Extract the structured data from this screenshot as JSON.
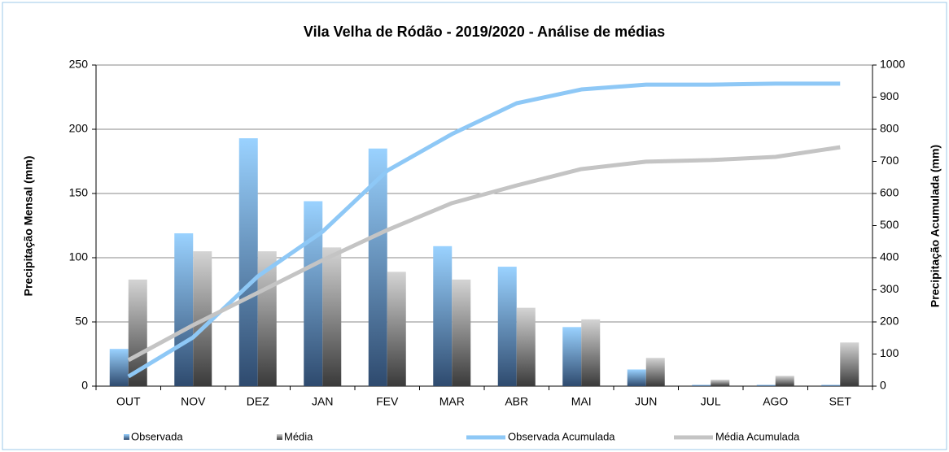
{
  "chart_data": {
    "type": "bar_line_combo",
    "title": "Vila Velha de Ródão - 2019/2020  - Análise de médias",
    "y_label": "Precipitação Mensal (mm)",
    "y2_label": "Precipitação Acumulada (mm)",
    "categories": [
      "OUT",
      "NOV",
      "DEZ",
      "JAN",
      "FEV",
      "MAR",
      "ABR",
      "MAI",
      "JUN",
      "JUL",
      "AGO",
      "SET"
    ],
    "series": [
      {
        "name": "Observada",
        "kind": "bar",
        "color": "#8cc8f8",
        "values": [
          29,
          119,
          193,
          144,
          185,
          109,
          93,
          46,
          13,
          1,
          1,
          1
        ]
      },
      {
        "name": "Média",
        "kind": "bar",
        "color": "#c8c8c8",
        "values": [
          83,
          105,
          105,
          108,
          89,
          83,
          61,
          52,
          22,
          5,
          8,
          34
        ]
      },
      {
        "name": "Observada Acumulada",
        "kind": "line",
        "axis": "y2",
        "color": "#8ec8f6",
        "values": [
          30,
          152,
          342,
          481,
          671,
          785,
          881,
          924,
          939,
          939,
          942,
          942
        ]
      },
      {
        "name": "Média Acumulada",
        "kind": "line",
        "axis": "y2",
        "color": "#c4c4c4",
        "values": [
          81,
          190,
          291,
          392,
          486,
          570,
          625,
          676,
          699,
          704,
          714,
          744
        ]
      }
    ],
    "ylim": [
      0,
      250
    ],
    "yticks": [
      0,
      50,
      100,
      150,
      200,
      250
    ],
    "y2lim": [
      0,
      1000
    ],
    "y2ticks": [
      0,
      100,
      200,
      300,
      400,
      500,
      600,
      700,
      800,
      900,
      1000
    ],
    "grid": true,
    "legend": "bottom"
  }
}
